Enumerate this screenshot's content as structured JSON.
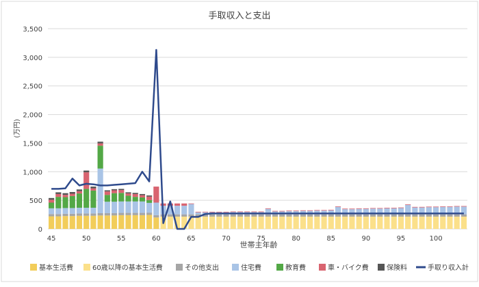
{
  "chart_data": {
    "type": "bar",
    "title": "手取収入と支出",
    "xlabel": "世帯主年齢",
    "ylabel": "(万円)",
    "x": [
      45,
      46,
      47,
      48,
      49,
      50,
      51,
      52,
      53,
      54,
      55,
      56,
      57,
      58,
      59,
      60,
      61,
      62,
      63,
      64,
      65,
      66,
      67,
      68,
      69,
      70,
      71,
      72,
      73,
      74,
      75,
      76,
      77,
      78,
      79,
      80,
      81,
      82,
      83,
      84,
      85,
      86,
      87,
      88,
      89,
      90,
      91,
      92,
      93,
      94,
      95,
      96,
      97,
      98,
      99,
      100,
      101,
      102,
      103,
      104
    ],
    "x_ticks": [
      45,
      50,
      55,
      60,
      65,
      70,
      75,
      80,
      85,
      90,
      95,
      100
    ],
    "y_ticks": [
      0,
      500,
      1000,
      1500,
      2000,
      2500,
      3000,
      3500
    ],
    "y_tick_labels": [
      "0",
      "500",
      "1,000",
      "1,500",
      "2,000",
      "2,500",
      "3,000",
      "3,500"
    ],
    "ylim": [
      0,
      3500
    ],
    "legend_position": "bottom",
    "grid": "horizontal",
    "series": [
      {
        "name": "基本生活費",
        "color": "#f2cd5a",
        "kind": "bar",
        "values": [
          220,
          220,
          225,
          225,
          230,
          230,
          230,
          235,
          235,
          235,
          240,
          240,
          240,
          240,
          245,
          200,
          0,
          0,
          0,
          0,
          0,
          0,
          0,
          0,
          0,
          0,
          0,
          0,
          0,
          0,
          0,
          0,
          0,
          0,
          0,
          0,
          0,
          0,
          0,
          0,
          0,
          0,
          0,
          0,
          0,
          0,
          0,
          0,
          0,
          0,
          0,
          0,
          0,
          0,
          0,
          0,
          0,
          0,
          0,
          0
        ]
      },
      {
        "name": "60歳以降の基本生活費",
        "color": "#fbe08a",
        "kind": "bar",
        "values": [
          0,
          0,
          0,
          0,
          0,
          0,
          0,
          0,
          0,
          0,
          0,
          0,
          0,
          0,
          0,
          0,
          215,
          215,
          215,
          215,
          215,
          215,
          215,
          215,
          215,
          215,
          215,
          215,
          215,
          215,
          215,
          215,
          215,
          215,
          215,
          215,
          215,
          215,
          215,
          215,
          215,
          215,
          215,
          215,
          215,
          215,
          215,
          215,
          215,
          215,
          215,
          215,
          215,
          215,
          215,
          215,
          215,
          215,
          215,
          215
        ]
      },
      {
        "name": "その他支出",
        "color": "#a6a6a6",
        "kind": "bar",
        "values": [
          40,
          40,
          40,
          40,
          40,
          40,
          40,
          40,
          40,
          40,
          40,
          40,
          40,
          40,
          40,
          40,
          40,
          40,
          40,
          40,
          40,
          40,
          40,
          40,
          40,
          40,
          40,
          40,
          40,
          40,
          40,
          40,
          40,
          40,
          40,
          40,
          40,
          40,
          40,
          40,
          40,
          40,
          40,
          40,
          40,
          40,
          40,
          40,
          40,
          40,
          40,
          40,
          40,
          40,
          40,
          40,
          40,
          40,
          40,
          40
        ]
      },
      {
        "name": "住宅費",
        "color": "#a9c4e6",
        "kind": "bar",
        "values": [
          100,
          100,
          100,
          100,
          100,
          100,
          100,
          780,
          200,
          200,
          200,
          200,
          200,
          200,
          170,
          220,
          150,
          150,
          150,
          150,
          180,
          35,
          35,
          35,
          35,
          35,
          40,
          40,
          40,
          40,
          40,
          95,
          50,
          50,
          55,
          55,
          60,
          60,
          65,
          65,
          70,
          130,
          90,
          90,
          95,
          95,
          100,
          100,
          105,
          105,
          110,
          165,
          120,
          120,
          125,
          125,
          130,
          130,
          135,
          135
        ]
      },
      {
        "name": "教育費",
        "color": "#53a846",
        "kind": "bar",
        "values": [
          100,
          200,
          190,
          210,
          250,
          330,
          300,
          400,
          120,
          150,
          150,
          100,
          80,
          70,
          50,
          0,
          0,
          0,
          0,
          0,
          0,
          0,
          0,
          0,
          0,
          0,
          0,
          0,
          0,
          0,
          0,
          0,
          0,
          0,
          0,
          0,
          0,
          0,
          0,
          0,
          0,
          0,
          0,
          0,
          0,
          0,
          0,
          0,
          0,
          0,
          0,
          0,
          0,
          0,
          0,
          0,
          0,
          0,
          0,
          0
        ]
      },
      {
        "name": "車・バイク費",
        "color": "#d96470",
        "kind": "bar",
        "values": [
          50,
          50,
          40,
          40,
          40,
          290,
          40,
          40,
          60,
          50,
          50,
          40,
          50,
          40,
          60,
          280,
          40,
          40,
          40,
          40,
          10,
          10,
          10,
          10,
          10,
          10,
          10,
          10,
          10,
          10,
          10,
          10,
          10,
          10,
          10,
          10,
          10,
          10,
          10,
          10,
          10,
          10,
          10,
          10,
          10,
          10,
          10,
          10,
          10,
          10,
          10,
          10,
          10,
          10,
          10,
          10,
          10,
          10,
          10,
          10
        ]
      },
      {
        "name": "保険料",
        "color": "#555555",
        "kind": "bar",
        "values": [
          30,
          30,
          30,
          30,
          30,
          30,
          30,
          30,
          20,
          20,
          20,
          20,
          20,
          20,
          20,
          0,
          0,
          0,
          0,
          0,
          0,
          0,
          0,
          0,
          0,
          0,
          0,
          0,
          0,
          0,
          0,
          0,
          0,
          0,
          0,
          0,
          0,
          0,
          0,
          0,
          0,
          0,
          0,
          0,
          0,
          0,
          0,
          0,
          0,
          0,
          0,
          0,
          0,
          0,
          0,
          0,
          0,
          0,
          0,
          0
        ]
      },
      {
        "name": "手取り収入計",
        "color": "#2e4a8c",
        "kind": "line",
        "values": [
          700,
          700,
          710,
          880,
          760,
          790,
          780,
          760,
          760,
          770,
          780,
          790,
          800,
          1000,
          830,
          3130,
          100,
          480,
          0,
          0,
          210,
          210,
          260,
          270,
          270,
          270,
          270,
          270,
          270,
          270,
          270,
          270,
          270,
          270,
          270,
          270,
          270,
          270,
          270,
          270,
          270,
          270,
          270,
          270,
          270,
          270,
          270,
          270,
          270,
          270,
          270,
          270,
          270,
          270,
          270,
          270,
          270,
          270,
          270,
          270
        ]
      }
    ]
  }
}
